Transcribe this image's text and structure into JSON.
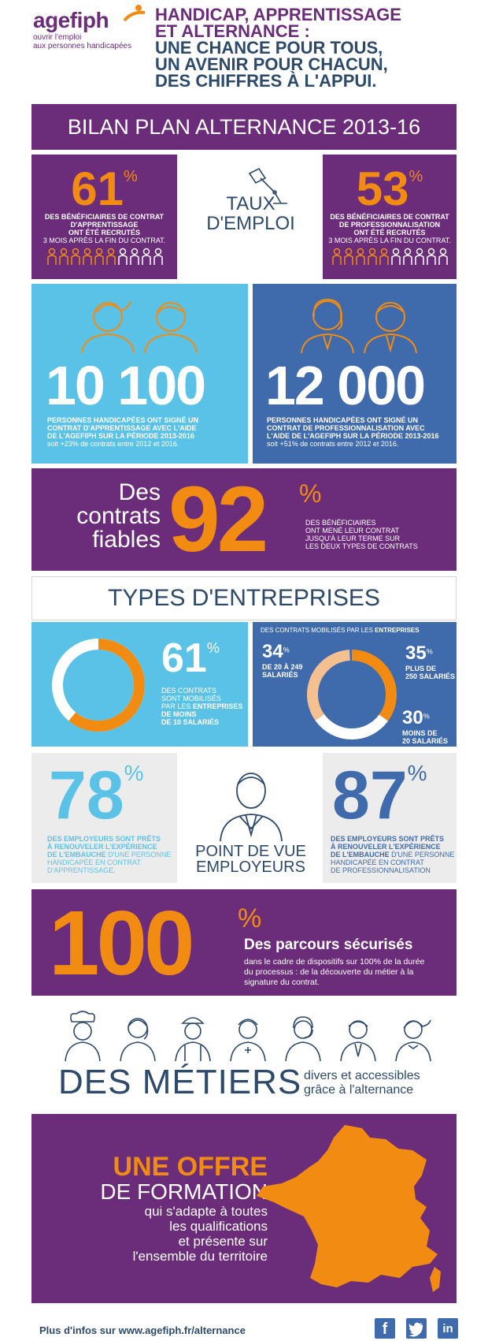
{
  "header": {
    "logo_text": "agefiph",
    "logo_tagline_1": "ouvrir l'emploi",
    "logo_tagline_2": "aux personnes handicapées",
    "title_line_1": "HANDICAP, APPRENTISSAGE",
    "title_line_2": "ET ALTERNANCE :",
    "title_line_3": "UNE CHANCE POUR TOUS,",
    "title_line_4": "UN AVENIR POUR CHACUN,",
    "title_line_5": "DES CHIFFRES À L'APPUI."
  },
  "banner": {
    "title": "BILAN PLAN ALTERNANCE 2013-16"
  },
  "emploi": {
    "left": {
      "value": "61",
      "unit": "%",
      "line1": "DES BÉNÉFICIAIRES DE CONTRAT",
      "line2": "D'APPRENTISSAGE",
      "line3": "ONT ÉTÉ RECRUTÉS",
      "line4": "3 MOIS APRÈS LA FIN DU CONTRAT."
    },
    "center_line1": "TAUX",
    "center_line2": "D'EMPLOI",
    "right": {
      "value": "53",
      "unit": "%",
      "line1": "DES BÉNÉFICIAIRES DE CONTRAT",
      "line2": "DE PROFESSIONNALISATION",
      "line3": "ONT ÉTÉ RECRUTÉS",
      "line4": "3 MOIS APRÈS LA FIN DU CONTRAT."
    }
  },
  "signed": {
    "left": {
      "value": "10 100",
      "line1": "PERSONNES HANDICAPÉES ONT SIGNÉ UN",
      "line2": "CONTRAT D'APPRENTISSAGE AVEC L'AIDE",
      "line3": "DE L'AGEFIPH SUR LA PÉRIODE 2013-2016",
      "line4": "soit +23% de contrats entre 2012 et 2016."
    },
    "right": {
      "value": "12 000",
      "line1": "PERSONNES HANDICAPÉES ONT SIGNÉ UN",
      "line2": "CONTRAT DE PROFESSIONNALISATION AVEC",
      "line3": "L'AIDE DE L'AGEFIPH SUR LA PÉRIODE 2013-2016",
      "line4": "soit +51% de contrats entre 2012 et 2016."
    }
  },
  "fiables": {
    "line1": "Des",
    "line2": "contrats",
    "line3": "fiables",
    "value": "92",
    "unit": "%",
    "desc1": "DES BÉNÉFICIAIRES",
    "desc2": "ONT MENÉ LEUR CONTRAT",
    "desc3": "JUSQU'À LEUR TERME SUR",
    "desc4": "LES DEUX TYPES DE CONTRATS"
  },
  "types": {
    "title": "TYPES D'ENTREPRISES",
    "left": {
      "value": "61",
      "unit": "%",
      "fraction": 0.61,
      "l1": "DES CONTRATS",
      "l2": "SONT MOBILISÉS",
      "l3": "PAR LES ",
      "l3b": "ENTREPRISES",
      "l4": "DE MOINS",
      "l5": "DE 10 SALARIÉS"
    },
    "right": {
      "header_pre": "DES CONTRATS MOBILISÉS PAR LES ",
      "header_bold": "ENTREPRISES",
      "a_value": "34",
      "a_unit": "%",
      "a_l1": "DE 20 À 249",
      "a_l2": "SALARIÉS",
      "b_value": "35",
      "b_unit": "%",
      "b_l1": "PLUS DE",
      "b_l2": "250 SALARIÉS",
      "c_value": "30",
      "c_unit": "%",
      "c_l1": "MOINS DE",
      "c_l2": "20 SALARIÉS"
    }
  },
  "employeurs": {
    "left": {
      "value": "78",
      "unit": "%",
      "b1": "DES EMPLOYEURS SONT PRÊTS",
      "b2": "À RENOUVELER L'EXPÉRIENCE",
      "b3": "DE L'EMBAUCHE",
      "n3": " D'UNE PERSONNE",
      "n4": "HANDICAPÉE EN CONTRAT",
      "n5": "D'APPRENTISSAGE."
    },
    "center_line1": "POINT DE VUE",
    "center_line2": "EMPLOYEURS",
    "right": {
      "value": "87",
      "unit": "%",
      "b1": "DES EMPLOYEURS SONT PRÊTS",
      "b2": "À RENOUVELER L'EXPÉRIENCE",
      "b3": "DE L'EMBAUCHE",
      "n3": " D'UNE PERSONNE",
      "n4": "HANDICAPÉE EN CONTRAT",
      "n5": "DE PROFESSIONNALISATION"
    }
  },
  "parcours": {
    "value": "100",
    "unit": "%",
    "title": "Des parcours sécurisés",
    "d1": "dans le cadre de dispositifs sur 100% de la durée",
    "d2": "du processus : de la découverte du métier à la",
    "d3": "signature du contrat."
  },
  "metiers": {
    "title": "DES MÉTIERS",
    "s1": "divers et accessibles",
    "s2": "grâce à l'alternance"
  },
  "offre": {
    "l1": "UNE OFFRE",
    "l2": "DE FORMATION",
    "s1": "qui s'adapte à toutes",
    "s2": "les qualifications",
    "s3": "et présente sur",
    "s4": "l'ensemble du territoire"
  },
  "footer": {
    "pre": "Plus d'infos sur ",
    "link": "www.agefiph.fr/alternance"
  },
  "colors": {
    "purple": "#6b2c7a",
    "orange": "#f28b12",
    "cyan": "#5bc2e7",
    "blue": "#3f6aab",
    "navy": "#2d4a6b"
  },
  "icons": [
    "facebook-icon",
    "twitter-icon",
    "linkedin-icon",
    "desk-lamp-icon",
    "person-icon",
    "businessman-icon",
    "france-map-icon"
  ]
}
